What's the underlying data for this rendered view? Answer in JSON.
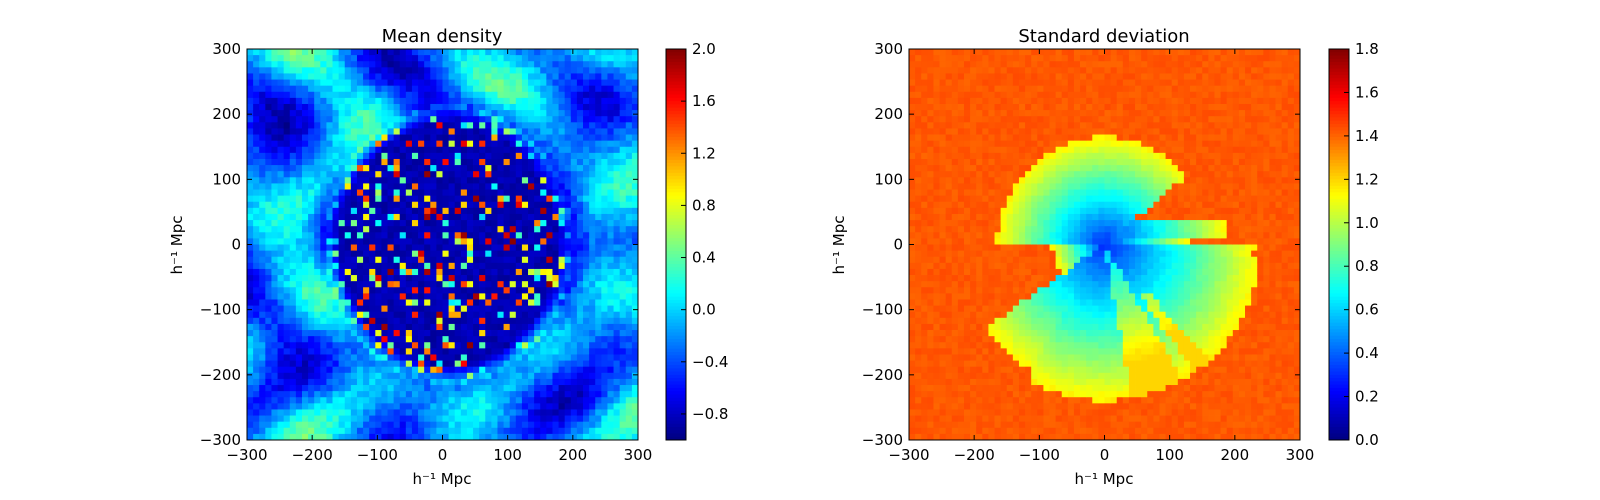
{
  "chart_data": [
    {
      "type": "heatmap",
      "title": "Mean density",
      "xlabel": "h⁻¹ Mpc",
      "ylabel": "h⁻¹ Mpc",
      "xlim": [
        -300,
        300
      ],
      "ylim": [
        -300,
        300
      ],
      "xticks": [
        -300,
        -200,
        -100,
        0,
        100,
        200,
        300
      ],
      "yticks": [
        -300,
        -200,
        -100,
        0,
        100,
        200,
        300
      ],
      "xtick_labels": [
        "−300",
        "−200",
        "−100",
        "0",
        "100",
        "200",
        "300"
      ],
      "ytick_labels": [
        "−300",
        "−200",
        "−100",
        "0",
        "100",
        "200",
        "300"
      ],
      "grid_cells": 64,
      "colormap": "jet",
      "colorbar": {
        "min": -1.0,
        "max": 2.0,
        "ticks": [
          -0.8,
          -0.4,
          0.0,
          0.4,
          0.8,
          1.2,
          1.6,
          2.0
        ],
        "tick_labels": [
          "−0.8",
          "−0.4",
          "0.0",
          "0.4",
          "0.8",
          "1.2",
          "1.6",
          "2.0"
        ]
      },
      "description_values": {
        "outer_region_mean": -0.2,
        "inner_region_mean": -0.85,
        "inner_region_radius": 190,
        "hotspot_max": 2.0
      }
    },
    {
      "type": "heatmap",
      "title": "Standard deviation",
      "xlabel": "h⁻¹ Mpc",
      "ylabel": "h⁻¹ Mpc",
      "xlim": [
        -300,
        300
      ],
      "ylim": [
        -300,
        300
      ],
      "xticks": [
        -300,
        -200,
        -100,
        0,
        100,
        200,
        300
      ],
      "yticks": [
        -300,
        -200,
        -100,
        0,
        100,
        200,
        300
      ],
      "xtick_labels": [
        "−300",
        "−200",
        "−100",
        "0",
        "100",
        "200",
        "300"
      ],
      "ytick_labels": [
        "−300",
        "−200",
        "−100",
        "0",
        "100",
        "200",
        "300"
      ],
      "grid_cells": 64,
      "colormap": "jet",
      "colorbar": {
        "min": 0.0,
        "max": 1.8,
        "ticks": [
          0.0,
          0.2,
          0.4,
          0.6,
          0.8,
          1.0,
          1.2,
          1.4,
          1.6,
          1.8
        ],
        "tick_labels": [
          "0.0",
          "0.2",
          "0.4",
          "0.6",
          "0.8",
          "1.0",
          "1.2",
          "1.4",
          "1.6",
          "1.8"
        ]
      },
      "description_values": {
        "outer_level": 1.42,
        "center_level": 0.3,
        "survey_radius": 170
      }
    }
  ],
  "colors": {
    "frame": "#000000",
    "background": "#ffffff"
  }
}
